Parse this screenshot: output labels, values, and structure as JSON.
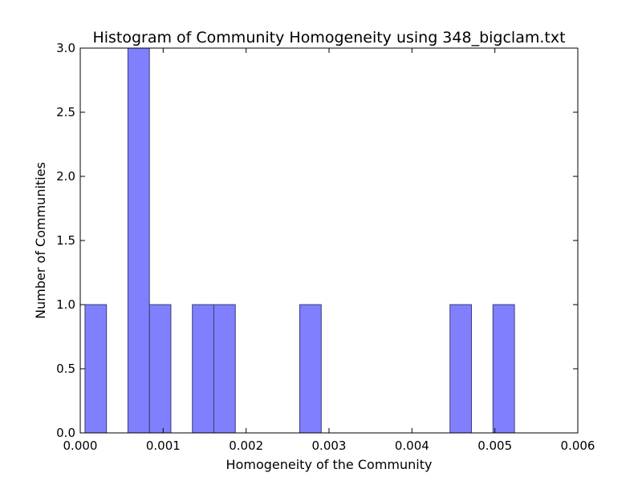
{
  "chart_data": {
    "type": "bar",
    "title": "Histogram of Community Homogeneity using 348_bigclam.txt",
    "xlabel": "Homogeneity of the Community",
    "ylabel": "Number of Communities",
    "xlim": [
      0.0,
      0.006
    ],
    "ylim": [
      0.0,
      3.0
    ],
    "xticks": [
      "0.000",
      "0.001",
      "0.002",
      "0.003",
      "0.004",
      "0.005",
      "0.006"
    ],
    "yticks": [
      "0.0",
      "0.5",
      "1.0",
      "1.5",
      "2.0",
      "2.5",
      "3.0"
    ],
    "grid": false,
    "bar_color": "#8080ff",
    "bar_edge_color": "#3a3a7a",
    "bins": [
      {
        "start": 5.75e-05,
        "end": 0.000316,
        "count": 1
      },
      {
        "start": 0.000575,
        "end": 0.000834,
        "count": 3
      },
      {
        "start": 0.000834,
        "end": 0.001093,
        "count": 1
      },
      {
        "start": 0.001352,
        "end": 0.001611,
        "count": 1
      },
      {
        "start": 0.001611,
        "end": 0.00187,
        "count": 1
      },
      {
        "start": 0.002647,
        "end": 0.002906,
        "count": 1
      },
      {
        "start": 0.004459,
        "end": 0.004718,
        "count": 1
      },
      {
        "start": 0.004977,
        "end": 0.005236,
        "count": 1
      }
    ]
  }
}
